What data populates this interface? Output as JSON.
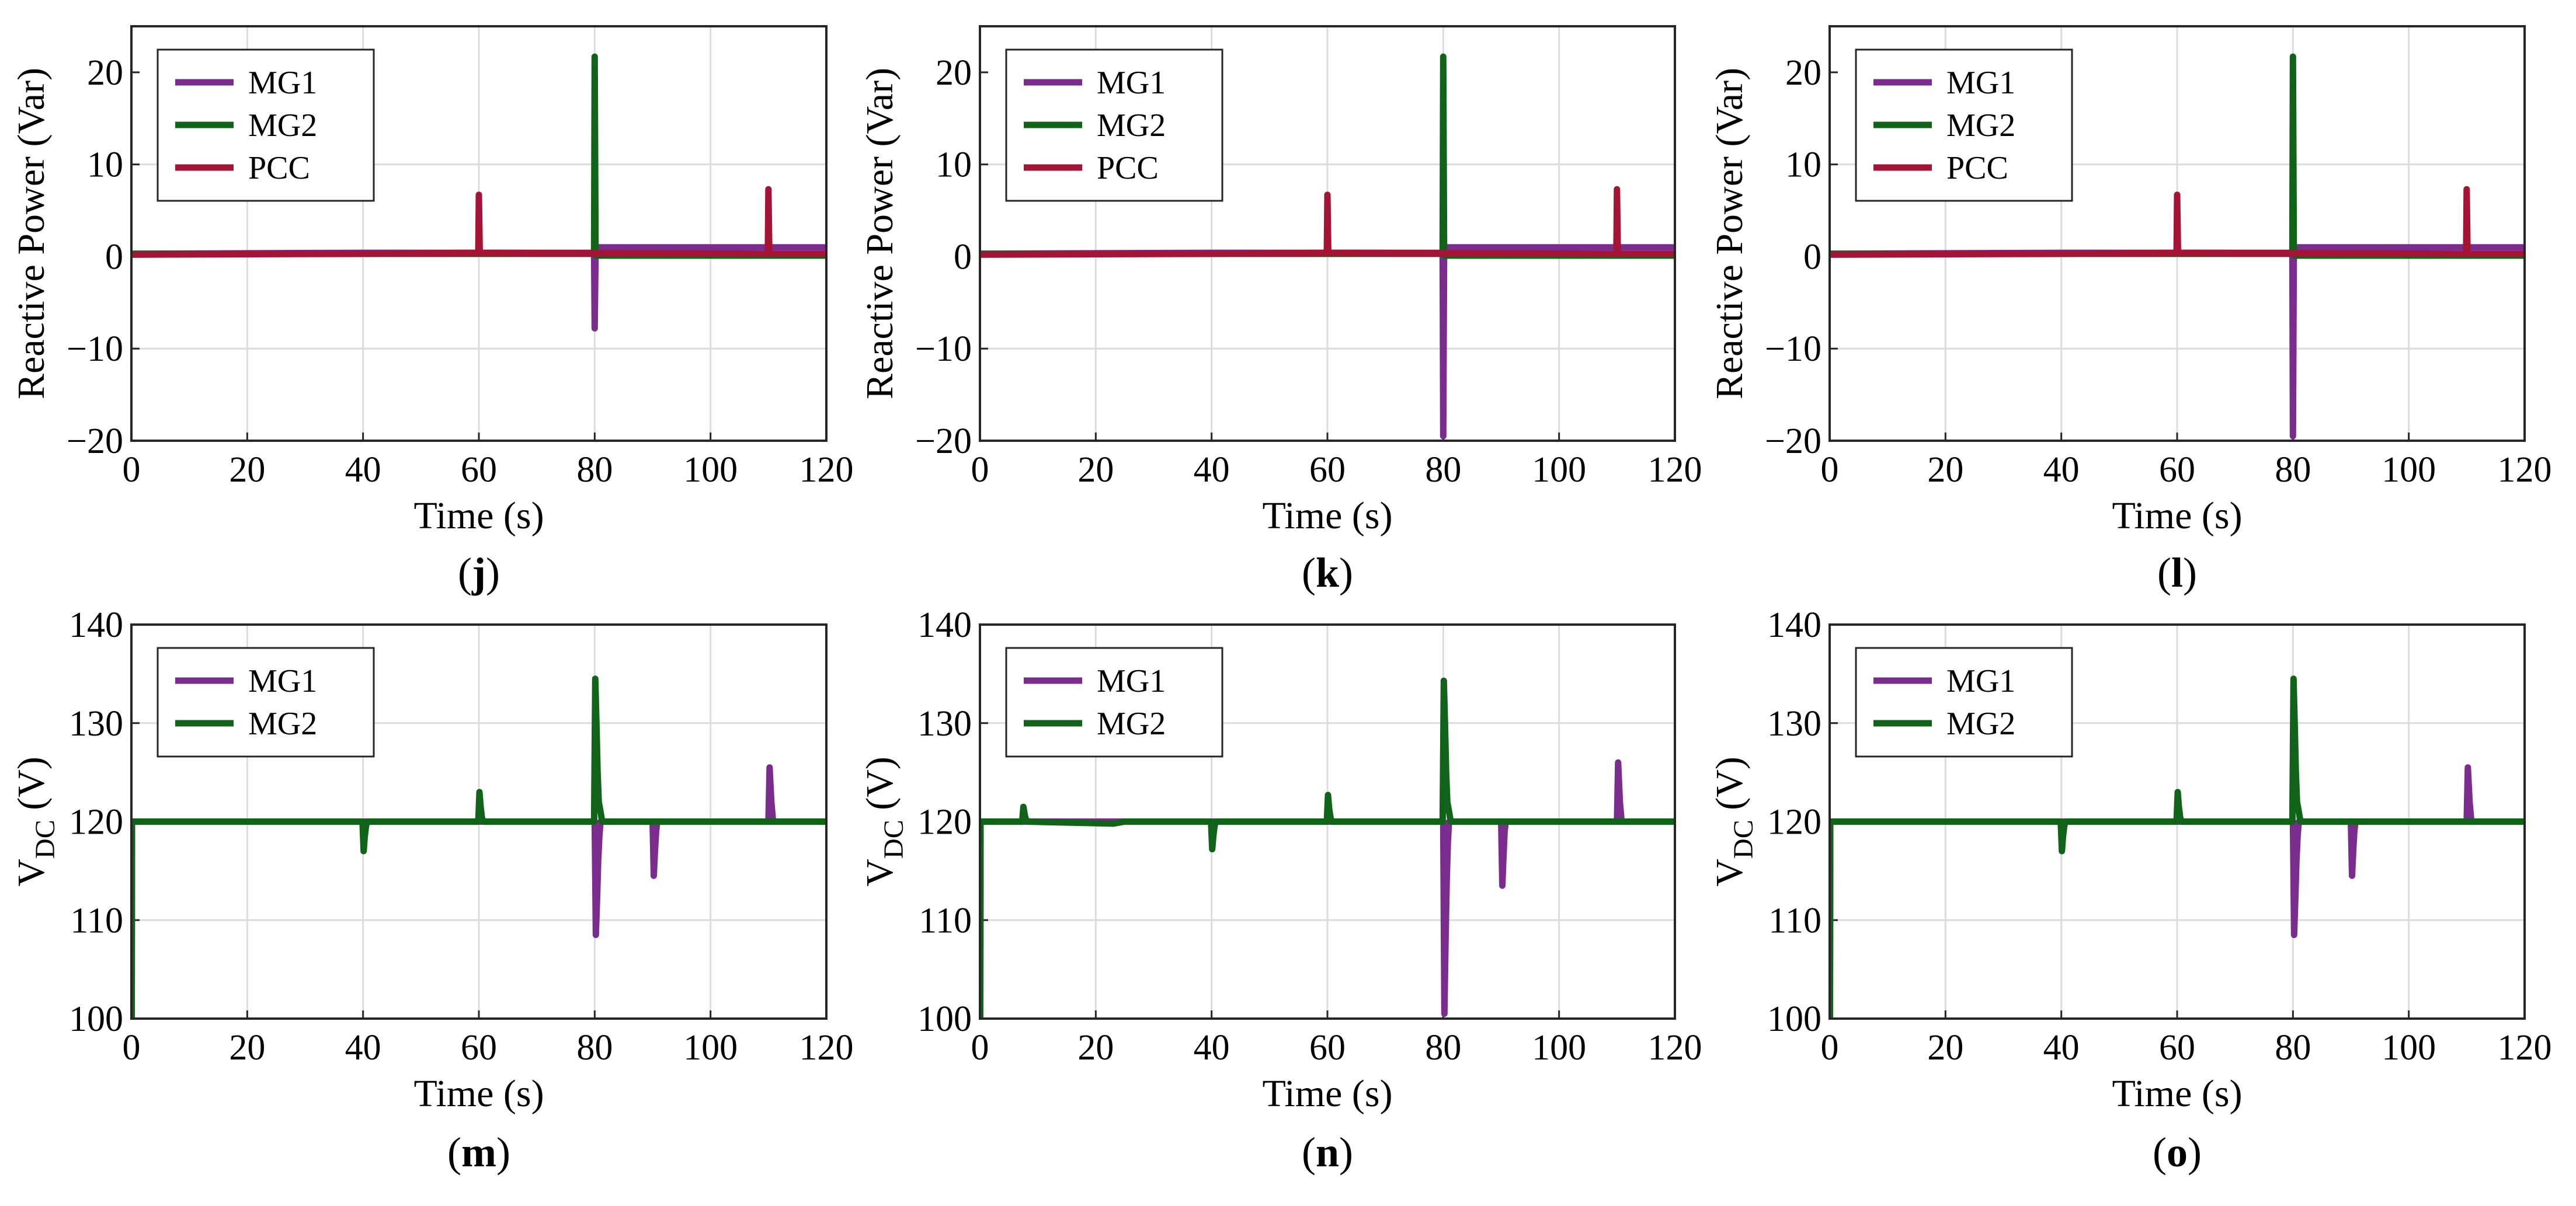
{
  "colors": {
    "MG1": "#7b2d8e",
    "MG2": "#12631a",
    "PCC": "#a41435"
  },
  "chart_data": [
    {
      "id": "j",
      "panel_label": "j",
      "type": "line",
      "xlabel": "Time (s)",
      "ylabel": "Reactive Power (Var)",
      "xlim": [
        0,
        120
      ],
      "ylim": [
        -20,
        25
      ],
      "xticks": [
        "0",
        "20",
        "40",
        "60",
        "80",
        "100",
        "120"
      ],
      "yticks": [
        "-20",
        "-10",
        "0",
        "10",
        "20"
      ],
      "legend_position": "top-left",
      "series": [
        {
          "name": "MG1",
          "color_key": "MG1",
          "x": [
            0,
            40,
            79.9,
            80,
            80.15,
            80.3,
            80.5,
            90,
            120
          ],
          "y": [
            0.3,
            0.4,
            0.4,
            -7.8,
            0.4,
            1.0,
            1.0,
            1.0,
            1.0
          ]
        },
        {
          "name": "MG2",
          "color_key": "MG2",
          "x": [
            0,
            40,
            79.9,
            80,
            80.15,
            80.3,
            80.5,
            120
          ],
          "y": [
            0.3,
            0.3,
            0.3,
            21.7,
            0.3,
            0.1,
            0.1,
            0.1
          ]
        },
        {
          "name": "PCC",
          "color_key": "PCC",
          "x": [
            0,
            40,
            59.9,
            60,
            60.15,
            60.3,
            109.9,
            110,
            110.15,
            110.3,
            120
          ],
          "y": [
            0.2,
            0.3,
            0.4,
            6.7,
            0.4,
            0.4,
            0.3,
            7.3,
            0.3,
            0.3,
            0.3
          ]
        }
      ]
    },
    {
      "id": "k",
      "panel_label": "k",
      "type": "line",
      "xlabel": "Time (s)",
      "ylabel": "Reactive Power (Var)",
      "xlim": [
        0,
        120
      ],
      "ylim": [
        -20,
        25
      ],
      "xticks": [
        "0",
        "20",
        "40",
        "60",
        "80",
        "100",
        "120"
      ],
      "yticks": [
        "-20",
        "-10",
        "0",
        "10",
        "20"
      ],
      "legend_position": "top-left",
      "series": [
        {
          "name": "MG1",
          "color_key": "MG1",
          "x": [
            0,
            40,
            79.9,
            80,
            80.15,
            80.3,
            80.5,
            90,
            120
          ],
          "y": [
            0.3,
            0.4,
            0.4,
            -19.5,
            0.4,
            1.0,
            1.0,
            1.0,
            1.0
          ]
        },
        {
          "name": "MG2",
          "color_key": "MG2",
          "x": [
            0,
            40,
            79.9,
            80,
            80.15,
            80.3,
            80.5,
            120
          ],
          "y": [
            0.3,
            0.3,
            0.3,
            21.7,
            0.3,
            0.1,
            0.1,
            0.1
          ]
        },
        {
          "name": "PCC",
          "color_key": "PCC",
          "x": [
            0,
            40,
            59.9,
            60,
            60.15,
            60.3,
            109.9,
            110,
            110.15,
            110.3,
            120
          ],
          "y": [
            0.2,
            0.3,
            0.4,
            6.7,
            0.4,
            0.4,
            0.3,
            7.3,
            0.3,
            0.3,
            0.3
          ]
        }
      ]
    },
    {
      "id": "l",
      "panel_label": "l",
      "type": "line",
      "xlabel": "Time (s)",
      "ylabel": "Reactive Power (Var)",
      "xlim": [
        0,
        120
      ],
      "ylim": [
        -20,
        25
      ],
      "xticks": [
        "0",
        "20",
        "40",
        "60",
        "80",
        "100",
        "120"
      ],
      "yticks": [
        "-20",
        "-10",
        "0",
        "10",
        "20"
      ],
      "legend_position": "top-left",
      "series": [
        {
          "name": "MG1",
          "color_key": "MG1",
          "x": [
            0,
            40,
            79.9,
            80,
            80.15,
            80.3,
            80.5,
            90,
            120
          ],
          "y": [
            0.3,
            0.4,
            0.4,
            -19.5,
            0.4,
            1.0,
            1.0,
            1.0,
            1.0
          ]
        },
        {
          "name": "MG2",
          "color_key": "MG2",
          "x": [
            0,
            40,
            79.9,
            80,
            80.15,
            80.3,
            80.5,
            120
          ],
          "y": [
            0.3,
            0.3,
            0.3,
            21.7,
            0.3,
            0.1,
            0.1,
            0.1
          ]
        },
        {
          "name": "PCC",
          "color_key": "PCC",
          "x": [
            0,
            40,
            59.9,
            60,
            60.15,
            60.3,
            109.9,
            110,
            110.15,
            110.3,
            120
          ],
          "y": [
            0.2,
            0.3,
            0.4,
            6.7,
            0.4,
            0.4,
            0.3,
            7.3,
            0.3,
            0.3,
            0.3
          ]
        }
      ]
    },
    {
      "id": "m",
      "panel_label": "m",
      "type": "line",
      "xlabel": "Time (s)",
      "ylabel": "V",
      "ylabel_subscript": "DC",
      "ylabel_unit": " (V)",
      "xlim": [
        0,
        120
      ],
      "ylim": [
        100,
        140
      ],
      "xticks": [
        "0",
        "20",
        "40",
        "60",
        "80",
        "100",
        "120"
      ],
      "yticks": [
        "100",
        "110",
        "120",
        "130",
        "140"
      ],
      "legend_position": "top-left",
      "series": [
        {
          "name": "MG1",
          "color_key": "MG1",
          "x": [
            0,
            0.05,
            0.1,
            40,
            80,
            80.2,
            80.4,
            80.6,
            80.8,
            81,
            90,
            90.2,
            90.4,
            90.6,
            90.8,
            110,
            110.2,
            110.5,
            110.8,
            120
          ],
          "y": [
            100,
            100,
            120,
            120,
            120,
            108.5,
            112,
            116,
            118.5,
            120,
            120,
            114.5,
            117,
            119,
            120,
            120,
            125.5,
            122,
            120,
            120
          ]
        },
        {
          "name": "MG2",
          "color_key": "MG2",
          "x": [
            0,
            0.05,
            0.1,
            39.9,
            40.1,
            40.3,
            40.5,
            40.7,
            59.9,
            60.1,
            60.3,
            60.5,
            60.7,
            79.9,
            80.1,
            80.3,
            80.5,
            80.7,
            81,
            81.3,
            120
          ],
          "y": [
            100,
            100,
            120,
            120,
            117,
            118.5,
            119.5,
            120,
            120,
            123,
            121.5,
            120.5,
            120,
            120,
            134.5,
            130,
            125,
            122,
            121,
            120,
            120
          ]
        }
      ]
    },
    {
      "id": "n",
      "panel_label": "n",
      "type": "line",
      "xlabel": "Time (s)",
      "ylabel": "V",
      "ylabel_subscript": "DC",
      "ylabel_unit": " (V)",
      "xlim": [
        0,
        120
      ],
      "ylim": [
        100,
        140
      ],
      "xticks": [
        "0",
        "20",
        "40",
        "60",
        "80",
        "100",
        "120"
      ],
      "yticks": [
        "100",
        "110",
        "120",
        "130",
        "140"
      ],
      "legend_position": "top-left",
      "series": [
        {
          "name": "MG1",
          "color_key": "MG1",
          "x": [
            0,
            0.05,
            0.1,
            40,
            80,
            80.2,
            80.4,
            80.6,
            80.8,
            81,
            90,
            90.2,
            90.4,
            90.6,
            90.8,
            110,
            110.2,
            110.5,
            110.8,
            120
          ],
          "y": [
            100,
            100,
            120,
            120,
            120,
            100.5,
            108,
            114,
            118,
            120,
            120,
            113.5,
            116.5,
            119,
            120,
            120,
            126,
            122,
            120,
            120
          ]
        },
        {
          "name": "MG2",
          "color_key": "MG2",
          "x": [
            0,
            0.05,
            0.1,
            7.3,
            7.5,
            7.8,
            8.1,
            23,
            25,
            39.9,
            40.1,
            40.3,
            40.5,
            40.7,
            59.9,
            60.1,
            60.3,
            60.5,
            60.7,
            79.9,
            80.1,
            80.3,
            80.5,
            80.7,
            81,
            81.3,
            120
          ],
          "y": [
            100,
            100,
            120,
            120,
            121.5,
            120.5,
            120,
            119.8,
            120,
            120,
            117.2,
            118.5,
            119.5,
            120,
            120,
            122.7,
            121.3,
            120.5,
            120,
            120,
            134.3,
            130,
            125,
            122,
            121,
            120,
            120
          ]
        }
      ]
    },
    {
      "id": "o",
      "panel_label": "o",
      "type": "line",
      "xlabel": "Time (s)",
      "ylabel": "V",
      "ylabel_subscript": "DC",
      "ylabel_unit": " (V)",
      "xlim": [
        0,
        120
      ],
      "ylim": [
        100,
        140
      ],
      "xticks": [
        "0",
        "20",
        "40",
        "60",
        "80",
        "100",
        "120"
      ],
      "yticks": [
        "100",
        "110",
        "120",
        "130",
        "140"
      ],
      "legend_position": "top-left",
      "series": [
        {
          "name": "MG1",
          "color_key": "MG1",
          "x": [
            0,
            0.05,
            0.1,
            40,
            80,
            80.2,
            80.4,
            80.6,
            80.8,
            81,
            90,
            90.2,
            90.4,
            90.6,
            90.8,
            110,
            110.2,
            110.5,
            110.8,
            120
          ],
          "y": [
            100,
            100,
            120,
            120,
            120,
            108.5,
            112,
            116,
            118.5,
            120,
            120,
            114.5,
            117,
            119,
            120,
            120,
            125.5,
            122,
            120,
            120
          ]
        },
        {
          "name": "MG2",
          "color_key": "MG2",
          "x": [
            0,
            0.05,
            0.1,
            39.9,
            40.1,
            40.3,
            40.5,
            40.7,
            59.9,
            60.1,
            60.3,
            60.5,
            60.7,
            79.9,
            80.1,
            80.3,
            80.5,
            80.7,
            81,
            81.3,
            120
          ],
          "y": [
            100,
            100,
            120,
            120,
            117,
            118.5,
            119.5,
            120,
            120,
            123,
            121.5,
            120.5,
            120,
            120,
            134.5,
            130,
            125,
            122,
            121,
            120,
            120
          ]
        }
      ]
    }
  ]
}
